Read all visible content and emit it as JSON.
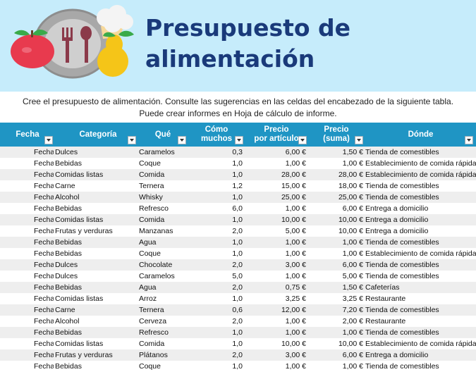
{
  "header": {
    "title_line1": "Presupuesto de",
    "title_line2": "alimentación",
    "description_line1": "Cree el presupuesto de alimentación. Consulte las sugerencias en las celdas del encabezado de la siguiente tabla.",
    "description_line2": "Puede crear informes en Hoja de cálculo de informe."
  },
  "table": {
    "columns": [
      {
        "line1": "Fecha",
        "line2": ""
      },
      {
        "line1": "Categoría",
        "line2": ""
      },
      {
        "line1": "Qué",
        "line2": ""
      },
      {
        "line1": "Cómo",
        "line2": "muchos"
      },
      {
        "line1": "Precio",
        "line2": "por artículo"
      },
      {
        "line1": "Precio",
        "line2": "(suma)"
      },
      {
        "line1": "Dónde",
        "line2": ""
      }
    ],
    "rows": [
      {
        "fecha": "Fecha",
        "categoria": "Dulces",
        "que": "Caramelos",
        "cuantos": "0,3",
        "precio": "6,00 €",
        "suma": "1,50 €",
        "donde": "Tienda de comestibles"
      },
      {
        "fecha": "Fecha",
        "categoria": "Bebidas",
        "que": "Coque",
        "cuantos": "1,0",
        "precio": "1,00 €",
        "suma": "1,00 €",
        "donde": "Establecimiento de comida rápida"
      },
      {
        "fecha": "Fecha",
        "categoria": "Comidas listas",
        "que": "Comida",
        "cuantos": "1,0",
        "precio": "28,00 €",
        "suma": "28,00 €",
        "donde": "Establecimiento de comida rápida"
      },
      {
        "fecha": "Fecha",
        "categoria": "Carne",
        "que": "Ternera",
        "cuantos": "1,2",
        "precio": "15,00 €",
        "suma": "18,00 €",
        "donde": "Tienda de comestibles"
      },
      {
        "fecha": "Fecha",
        "categoria": "Alcohol",
        "que": "Whisky",
        "cuantos": "1,0",
        "precio": "25,00 €",
        "suma": "25,00 €",
        "donde": "Tienda de comestibles"
      },
      {
        "fecha": "Fecha",
        "categoria": "Bebidas",
        "que": "Refresco",
        "cuantos": "6,0",
        "precio": "1,00 €",
        "suma": "6,00 €",
        "donde": "Entrega a domicilio"
      },
      {
        "fecha": "Fecha",
        "categoria": "Comidas listas",
        "que": "Comida",
        "cuantos": "1,0",
        "precio": "10,00 €",
        "suma": "10,00 €",
        "donde": "Entrega a domicilio"
      },
      {
        "fecha": "Fecha",
        "categoria": "Frutas y verduras",
        "que": "Manzanas",
        "cuantos": "2,0",
        "precio": "5,00 €",
        "suma": "10,00 €",
        "donde": "Entrega a domicilio"
      },
      {
        "fecha": "Fecha",
        "categoria": "Bebidas",
        "que": "Agua",
        "cuantos": "1,0",
        "precio": "1,00 €",
        "suma": "1,00 €",
        "donde": "Tienda de comestibles"
      },
      {
        "fecha": "Fecha",
        "categoria": "Bebidas",
        "que": "Coque",
        "cuantos": "1,0",
        "precio": "1,00 €",
        "suma": "1,00 €",
        "donde": "Establecimiento de comida rápida"
      },
      {
        "fecha": "Fecha",
        "categoria": "Dulces",
        "que": "Chocolate",
        "cuantos": "2,0",
        "precio": "3,00 €",
        "suma": "6,00 €",
        "donde": "Tienda de comestibles"
      },
      {
        "fecha": "Fecha",
        "categoria": "Dulces",
        "que": "Caramelos",
        "cuantos": "5,0",
        "precio": "1,00 €",
        "suma": "5,00 €",
        "donde": "Tienda de comestibles"
      },
      {
        "fecha": "Fecha",
        "categoria": "Bebidas",
        "que": "Agua",
        "cuantos": "2,0",
        "precio": "0,75 €",
        "suma": "1,50 €",
        "donde": "Cafeterías"
      },
      {
        "fecha": "Fecha",
        "categoria": "Comidas listas",
        "que": "Arroz",
        "cuantos": "1,0",
        "precio": "3,25 €",
        "suma": "3,25 €",
        "donde": "Restaurante"
      },
      {
        "fecha": "Fecha",
        "categoria": "Carne",
        "que": "Ternera",
        "cuantos": "0,6",
        "precio": "12,00 €",
        "suma": "7,20 €",
        "donde": "Tienda de comestibles"
      },
      {
        "fecha": "Fecha",
        "categoria": "Alcohol",
        "que": "Cerveza",
        "cuantos": "2,0",
        "precio": "1,00 €",
        "suma": "2,00 €",
        "donde": "Restaurante"
      },
      {
        "fecha": "Fecha",
        "categoria": "Bebidas",
        "que": "Refresco",
        "cuantos": "1,0",
        "precio": "1,00 €",
        "suma": "1,00 €",
        "donde": "Tienda de comestibles"
      },
      {
        "fecha": "Fecha",
        "categoria": "Comidas listas",
        "que": "Comida",
        "cuantos": "1,0",
        "precio": "10,00 €",
        "suma": "10,00 €",
        "donde": "Establecimiento de comida rápida"
      },
      {
        "fecha": "Fecha",
        "categoria": "Frutas y verduras",
        "que": "Plátanos",
        "cuantos": "2,0",
        "precio": "3,00 €",
        "suma": "6,00 €",
        "donde": "Entrega a domicilio"
      },
      {
        "fecha": "Fecha",
        "categoria": "Bebidas",
        "que": "Coque",
        "cuantos": "1,0",
        "precio": "1,00 €",
        "suma": "1,00 €",
        "donde": "Tienda de comestibles"
      }
    ]
  },
  "colors": {
    "banner": "#c6ecfb",
    "title": "#1a3a7a",
    "header": "#1f95c4",
    "row_alt": "#eeeeee"
  },
  "icons": [
    "plate-icon",
    "fork-icon",
    "spoon-icon",
    "apple-icon",
    "pear-icon",
    "chef-hat-icon",
    "filter-dropdown-icon"
  ]
}
